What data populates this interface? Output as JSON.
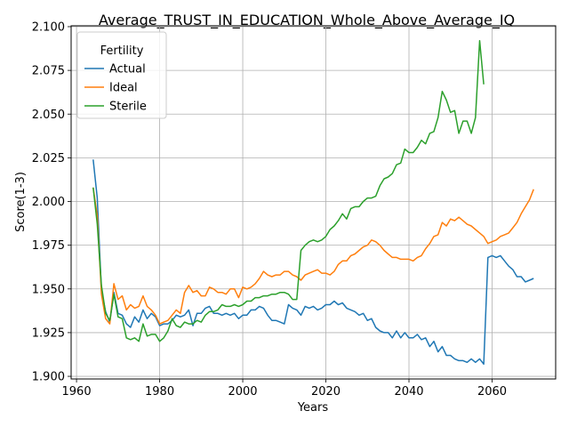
{
  "chart_data": {
    "type": "line",
    "title": "Average_TRUST_IN_EDUCATION_Whole_Above_Average_IQ",
    "xlabel": "Years",
    "ylabel": "Score(1-3)",
    "xlim": [
      1958.7,
      2075.3
    ],
    "ylim": [
      1.8985,
      2.1005
    ],
    "xticks": [
      1960,
      1980,
      2000,
      2020,
      2040,
      2060
    ],
    "yticks": [
      1.9,
      1.925,
      1.95,
      1.975,
      2.0,
      2.025,
      2.05,
      2.075,
      2.1
    ],
    "ytick_labels": [
      "1.900",
      "1.925",
      "1.950",
      "1.975",
      "2.000",
      "2.025",
      "2.050",
      "2.075",
      "2.100"
    ],
    "grid": true,
    "legend": {
      "title": "Fertility",
      "position": "top-left"
    },
    "series": [
      {
        "name": "Actual",
        "color": "#1f77b4",
        "x": [
          1964,
          1965,
          1966,
          1967,
          1968,
          1969,
          1970,
          1971,
          1972,
          1973,
          1974,
          1975,
          1976,
          1977,
          1978,
          1979,
          1980,
          1981,
          1982,
          1983,
          1984,
          1985,
          1986,
          1987,
          1988,
          1989,
          1990,
          1991,
          1992,
          1993,
          1994,
          1995,
          1996,
          1997,
          1998,
          1999,
          2000,
          2001,
          2002,
          2003,
          2004,
          2005,
          2006,
          2007,
          2008,
          2009,
          2010,
          2011,
          2012,
          2013,
          2014,
          2015,
          2016,
          2017,
          2018,
          2019,
          2020,
          2021,
          2022,
          2023,
          2024,
          2025,
          2026,
          2027,
          2028,
          2029,
          2030,
          2031,
          2032,
          2033,
          2034,
          2035,
          2036,
          2037,
          2038,
          2039,
          2040,
          2041,
          2042,
          2043,
          2044,
          2045,
          2046,
          2047,
          2048,
          2049,
          2050,
          2051,
          2052,
          2053,
          2054,
          2055,
          2056,
          2057,
          2058,
          2059,
          2060,
          2061,
          2062,
          2063,
          2064,
          2065,
          2066,
          2067,
          2068,
          2069,
          2070
        ],
        "values": [
          2.024,
          2.002,
          1.949,
          1.937,
          1.931,
          1.948,
          1.936,
          1.935,
          1.93,
          1.928,
          1.934,
          1.931,
          1.938,
          1.933,
          1.936,
          1.934,
          1.929,
          1.93,
          1.93,
          1.932,
          1.935,
          1.934,
          1.935,
          1.938,
          1.929,
          1.936,
          1.936,
          1.939,
          1.94,
          1.936,
          1.936,
          1.935,
          1.936,
          1.935,
          1.936,
          1.933,
          1.935,
          1.935,
          1.938,
          1.938,
          1.94,
          1.939,
          1.935,
          1.932,
          1.932,
          1.931,
          1.93,
          1.941,
          1.939,
          1.938,
          1.935,
          1.94,
          1.939,
          1.94,
          1.938,
          1.939,
          1.941,
          1.941,
          1.943,
          1.941,
          1.942,
          1.939,
          1.938,
          1.937,
          1.935,
          1.936,
          1.932,
          1.933,
          1.928,
          1.926,
          1.925,
          1.925,
          1.922,
          1.926,
          1.922,
          1.925,
          1.922,
          1.922,
          1.924,
          1.921,
          1.922,
          1.917,
          1.92,
          1.914,
          1.917,
          1.912,
          1.912,
          1.91,
          1.909,
          1.909,
          1.908,
          1.91,
          1.908,
          1.91,
          1.907,
          1.968,
          1.969,
          1.968,
          1.969,
          1.966,
          1.963,
          1.961,
          1.957,
          1.957,
          1.954,
          1.955,
          1.956
        ]
      },
      {
        "name": "Ideal",
        "color": "#ff7f0e",
        "x": [
          1964,
          1965,
          1966,
          1967,
          1968,
          1969,
          1970,
          1971,
          1972,
          1973,
          1974,
          1975,
          1976,
          1977,
          1978,
          1979,
          1980,
          1981,
          1982,
          1983,
          1984,
          1985,
          1986,
          1987,
          1988,
          1989,
          1990,
          1991,
          1992,
          1993,
          1994,
          1995,
          1996,
          1997,
          1998,
          1999,
          2000,
          2001,
          2002,
          2003,
          2004,
          2005,
          2006,
          2007,
          2008,
          2009,
          2010,
          2011,
          2012,
          2013,
          2014,
          2015,
          2016,
          2017,
          2018,
          2019,
          2020,
          2021,
          2022,
          2023,
          2024,
          2025,
          2026,
          2027,
          2028,
          2029,
          2030,
          2031,
          2032,
          2033,
          2034,
          2035,
          2036,
          2037,
          2038,
          2039,
          2040,
          2041,
          2042,
          2043,
          2044,
          2045,
          2046,
          2047,
          2048,
          2049,
          2050,
          2051,
          2052,
          2053,
          2054,
          2055,
          2056,
          2057,
          2058,
          2059,
          2060,
          2061,
          2062,
          2063,
          2064,
          2065,
          2066,
          2067,
          2068,
          2069,
          2070
        ],
        "values": [
          2.008,
          1.992,
          1.947,
          1.933,
          1.93,
          1.953,
          1.944,
          1.946,
          1.938,
          1.941,
          1.939,
          1.94,
          1.946,
          1.94,
          1.938,
          1.935,
          1.93,
          1.931,
          1.932,
          1.935,
          1.938,
          1.936,
          1.948,
          1.952,
          1.948,
          1.949,
          1.946,
          1.946,
          1.951,
          1.95,
          1.948,
          1.948,
          1.947,
          1.95,
          1.95,
          1.945,
          1.951,
          1.95,
          1.951,
          1.953,
          1.956,
          1.96,
          1.958,
          1.957,
          1.958,
          1.958,
          1.96,
          1.96,
          1.958,
          1.957,
          1.955,
          1.958,
          1.959,
          1.96,
          1.961,
          1.959,
          1.959,
          1.958,
          1.96,
          1.964,
          1.966,
          1.966,
          1.969,
          1.97,
          1.972,
          1.974,
          1.975,
          1.978,
          1.977,
          1.975,
          1.972,
          1.97,
          1.968,
          1.968,
          1.967,
          1.967,
          1.967,
          1.966,
          1.968,
          1.969,
          1.973,
          1.976,
          1.98,
          1.981,
          1.988,
          1.986,
          1.99,
          1.989,
          1.991,
          1.989,
          1.987,
          1.986,
          1.984,
          1.982,
          1.98,
          1.976,
          1.977,
          1.978,
          1.98,
          1.981,
          1.982,
          1.985,
          1.988,
          1.993,
          1.997,
          2.001,
          2.007
        ]
      },
      {
        "name": "Sterile",
        "color": "#2ca02c",
        "x": [
          1964,
          1965,
          1966,
          1967,
          1968,
          1969,
          1970,
          1971,
          1972,
          1973,
          1974,
          1975,
          1976,
          1977,
          1978,
          1979,
          1980,
          1981,
          1982,
          1983,
          1984,
          1985,
          1986,
          1987,
          1988,
          1989,
          1990,
          1991,
          1992,
          1993,
          1994,
          1995,
          1996,
          1997,
          1998,
          1999,
          2000,
          2001,
          2002,
          2003,
          2004,
          2005,
          2006,
          2007,
          2008,
          2009,
          2010,
          2011,
          2012,
          2013,
          2014,
          2015,
          2016,
          2017,
          2018,
          2019,
          2020,
          2021,
          2022,
          2023,
          2024,
          2025,
          2026,
          2027,
          2028,
          2029,
          2030,
          2031,
          2032,
          2033,
          2034,
          2035,
          2036,
          2037,
          2038,
          2039,
          2040,
          2041,
          2042,
          2043,
          2044,
          2045,
          2046,
          2047,
          2048,
          2049,
          2050,
          2051,
          2052,
          2053,
          2054,
          2055,
          2056,
          2057,
          2058
        ],
        "values": [
          2.008,
          1.987,
          1.952,
          1.936,
          1.932,
          1.947,
          1.934,
          1.933,
          1.922,
          1.921,
          1.922,
          1.92,
          1.93,
          1.923,
          1.924,
          1.924,
          1.92,
          1.922,
          1.926,
          1.933,
          1.929,
          1.928,
          1.931,
          1.93,
          1.93,
          1.932,
          1.931,
          1.935,
          1.937,
          1.937,
          1.938,
          1.941,
          1.94,
          1.94,
          1.941,
          1.94,
          1.941,
          1.943,
          1.943,
          1.945,
          1.945,
          1.946,
          1.946,
          1.947,
          1.947,
          1.948,
          1.948,
          1.947,
          1.944,
          1.944,
          1.972,
          1.975,
          1.977,
          1.978,
          1.977,
          1.978,
          1.98,
          1.984,
          1.986,
          1.989,
          1.993,
          1.99,
          1.996,
          1.997,
          1.997,
          2.0,
          2.002,
          2.002,
          2.003,
          2.009,
          2.013,
          2.014,
          2.016,
          2.021,
          2.022,
          2.03,
          2.028,
          2.028,
          2.031,
          2.035,
          2.033,
          2.039,
          2.04,
          2.048,
          2.063,
          2.058,
          2.051,
          2.052,
          2.039,
          2.046,
          2.046,
          2.039,
          2.048,
          2.092,
          2.067
        ]
      }
    ]
  }
}
